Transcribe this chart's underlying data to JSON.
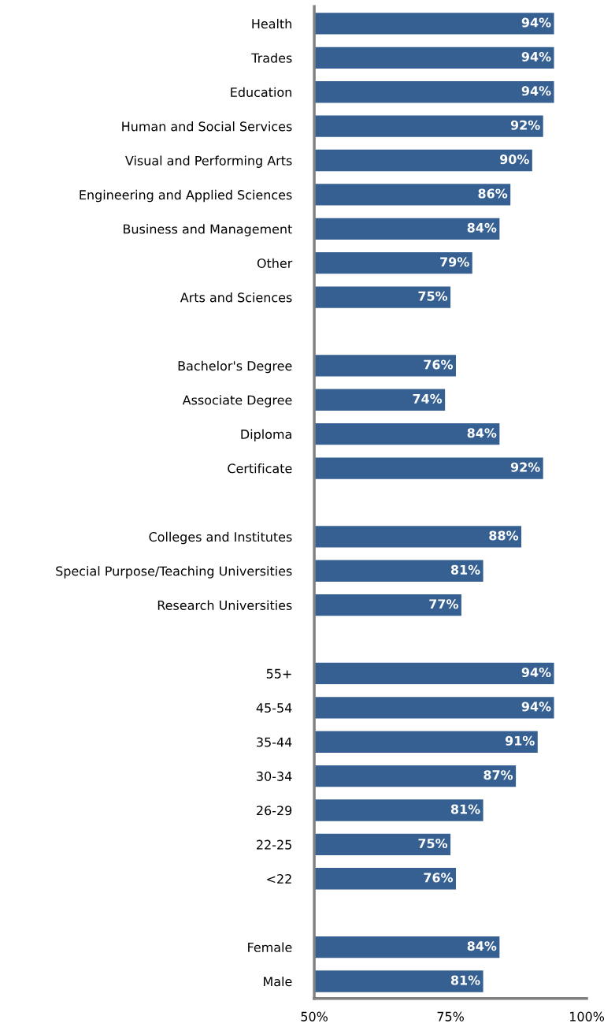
{
  "chart_data": {
    "type": "bar",
    "orientation": "horizontal",
    "color": "#366092",
    "categories": [
      "Health",
      "Trades",
      "Education",
      "Human and Social Services",
      "Visual and Performing Arts",
      "Engineering and Applied Sciences",
      "Business and Management",
      "Other",
      "Arts and Sciences",
      null,
      "Bachelor's Degree",
      "Associate Degree",
      "Diploma",
      "Certificate",
      null,
      "Colleges and Institutes",
      "Special Purpose/Teaching Universities",
      "Research Universities",
      null,
      "55+",
      "45-54",
      "35-44",
      "30-34",
      "26-29",
      "22-25",
      "<22",
      null,
      "Female",
      "Male"
    ],
    "values": [
      94,
      94,
      94,
      92,
      90,
      86,
      84,
      79,
      75,
      null,
      76,
      74,
      84,
      92,
      null,
      88,
      81,
      77,
      null,
      94,
      94,
      91,
      87,
      81,
      75,
      76,
      null,
      84,
      81
    ],
    "value_labels": [
      "94%",
      "94%",
      "94%",
      "92%",
      "90%",
      "86%",
      "84%",
      "79%",
      "75%",
      null,
      "76%",
      "74%",
      "84%",
      "92%",
      null,
      "88%",
      "81%",
      "77%",
      null,
      "94%",
      "94%",
      "91%",
      "87%",
      "81%",
      "75%",
      "76%",
      null,
      "84%",
      "81%"
    ],
    "xlim": [
      50,
      100
    ],
    "xticks": [
      {
        "value": 50,
        "label": "50%"
      },
      {
        "value": 75,
        "label": "75%"
      },
      {
        "value": 100,
        "label": "100%"
      }
    ],
    "grid": false,
    "legend": false
  }
}
